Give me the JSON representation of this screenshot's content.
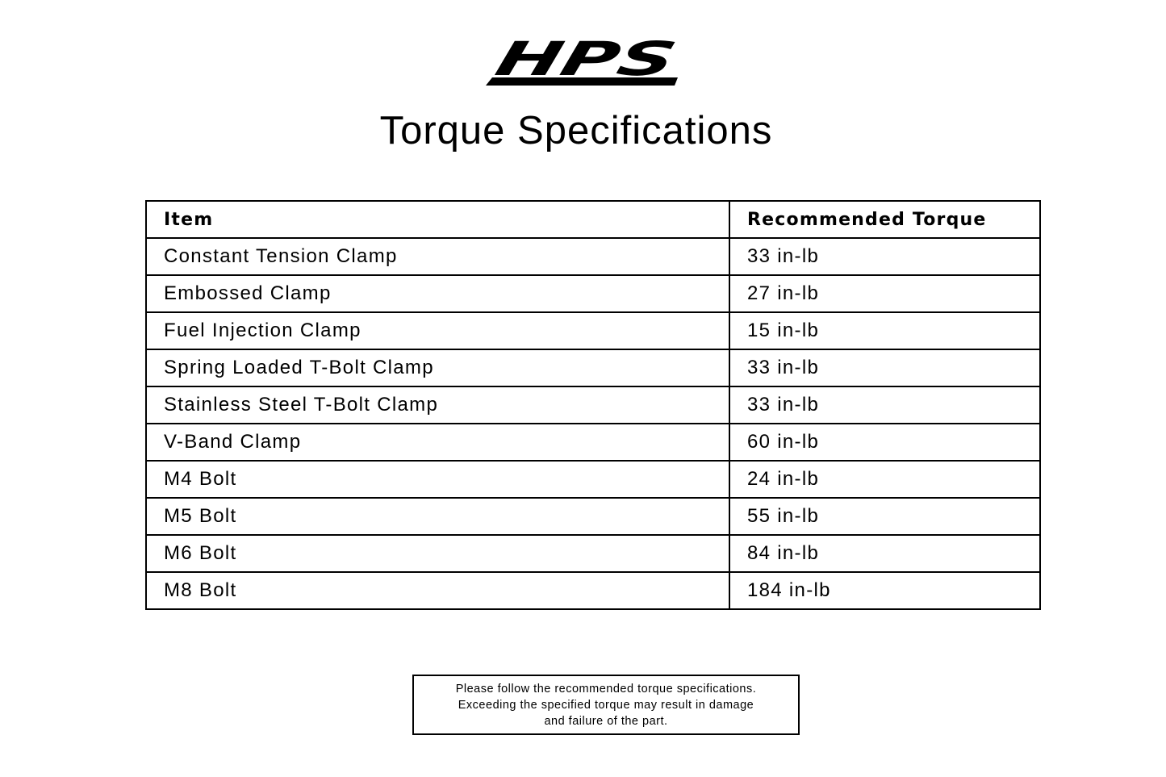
{
  "logo": {
    "text": "HPS"
  },
  "title": "Torque Specifications",
  "table": {
    "headers": [
      "Item",
      "Recommended Torque"
    ],
    "rows": [
      [
        "Constant Tension Clamp",
        "33 in-lb"
      ],
      [
        "Embossed Clamp",
        "27 in-lb"
      ],
      [
        "Fuel Injection Clamp",
        "15 in-lb"
      ],
      [
        "Spring Loaded T-Bolt Clamp",
        "33 in-lb"
      ],
      [
        "Stainless Steel T-Bolt Clamp",
        "33 in-lb"
      ],
      [
        "V-Band Clamp",
        "60 in-lb"
      ],
      [
        "M4 Bolt",
        "24 in-lb"
      ],
      [
        "M5 Bolt",
        "55 in-lb"
      ],
      [
        "M6 Bolt",
        "84 in-lb"
      ],
      [
        "M8 Bolt",
        "184 in-lb"
      ]
    ]
  },
  "note": [
    "Please follow the recommended torque specifications.",
    "Exceeding the specified torque may result in damage",
    "and failure of the part."
  ]
}
